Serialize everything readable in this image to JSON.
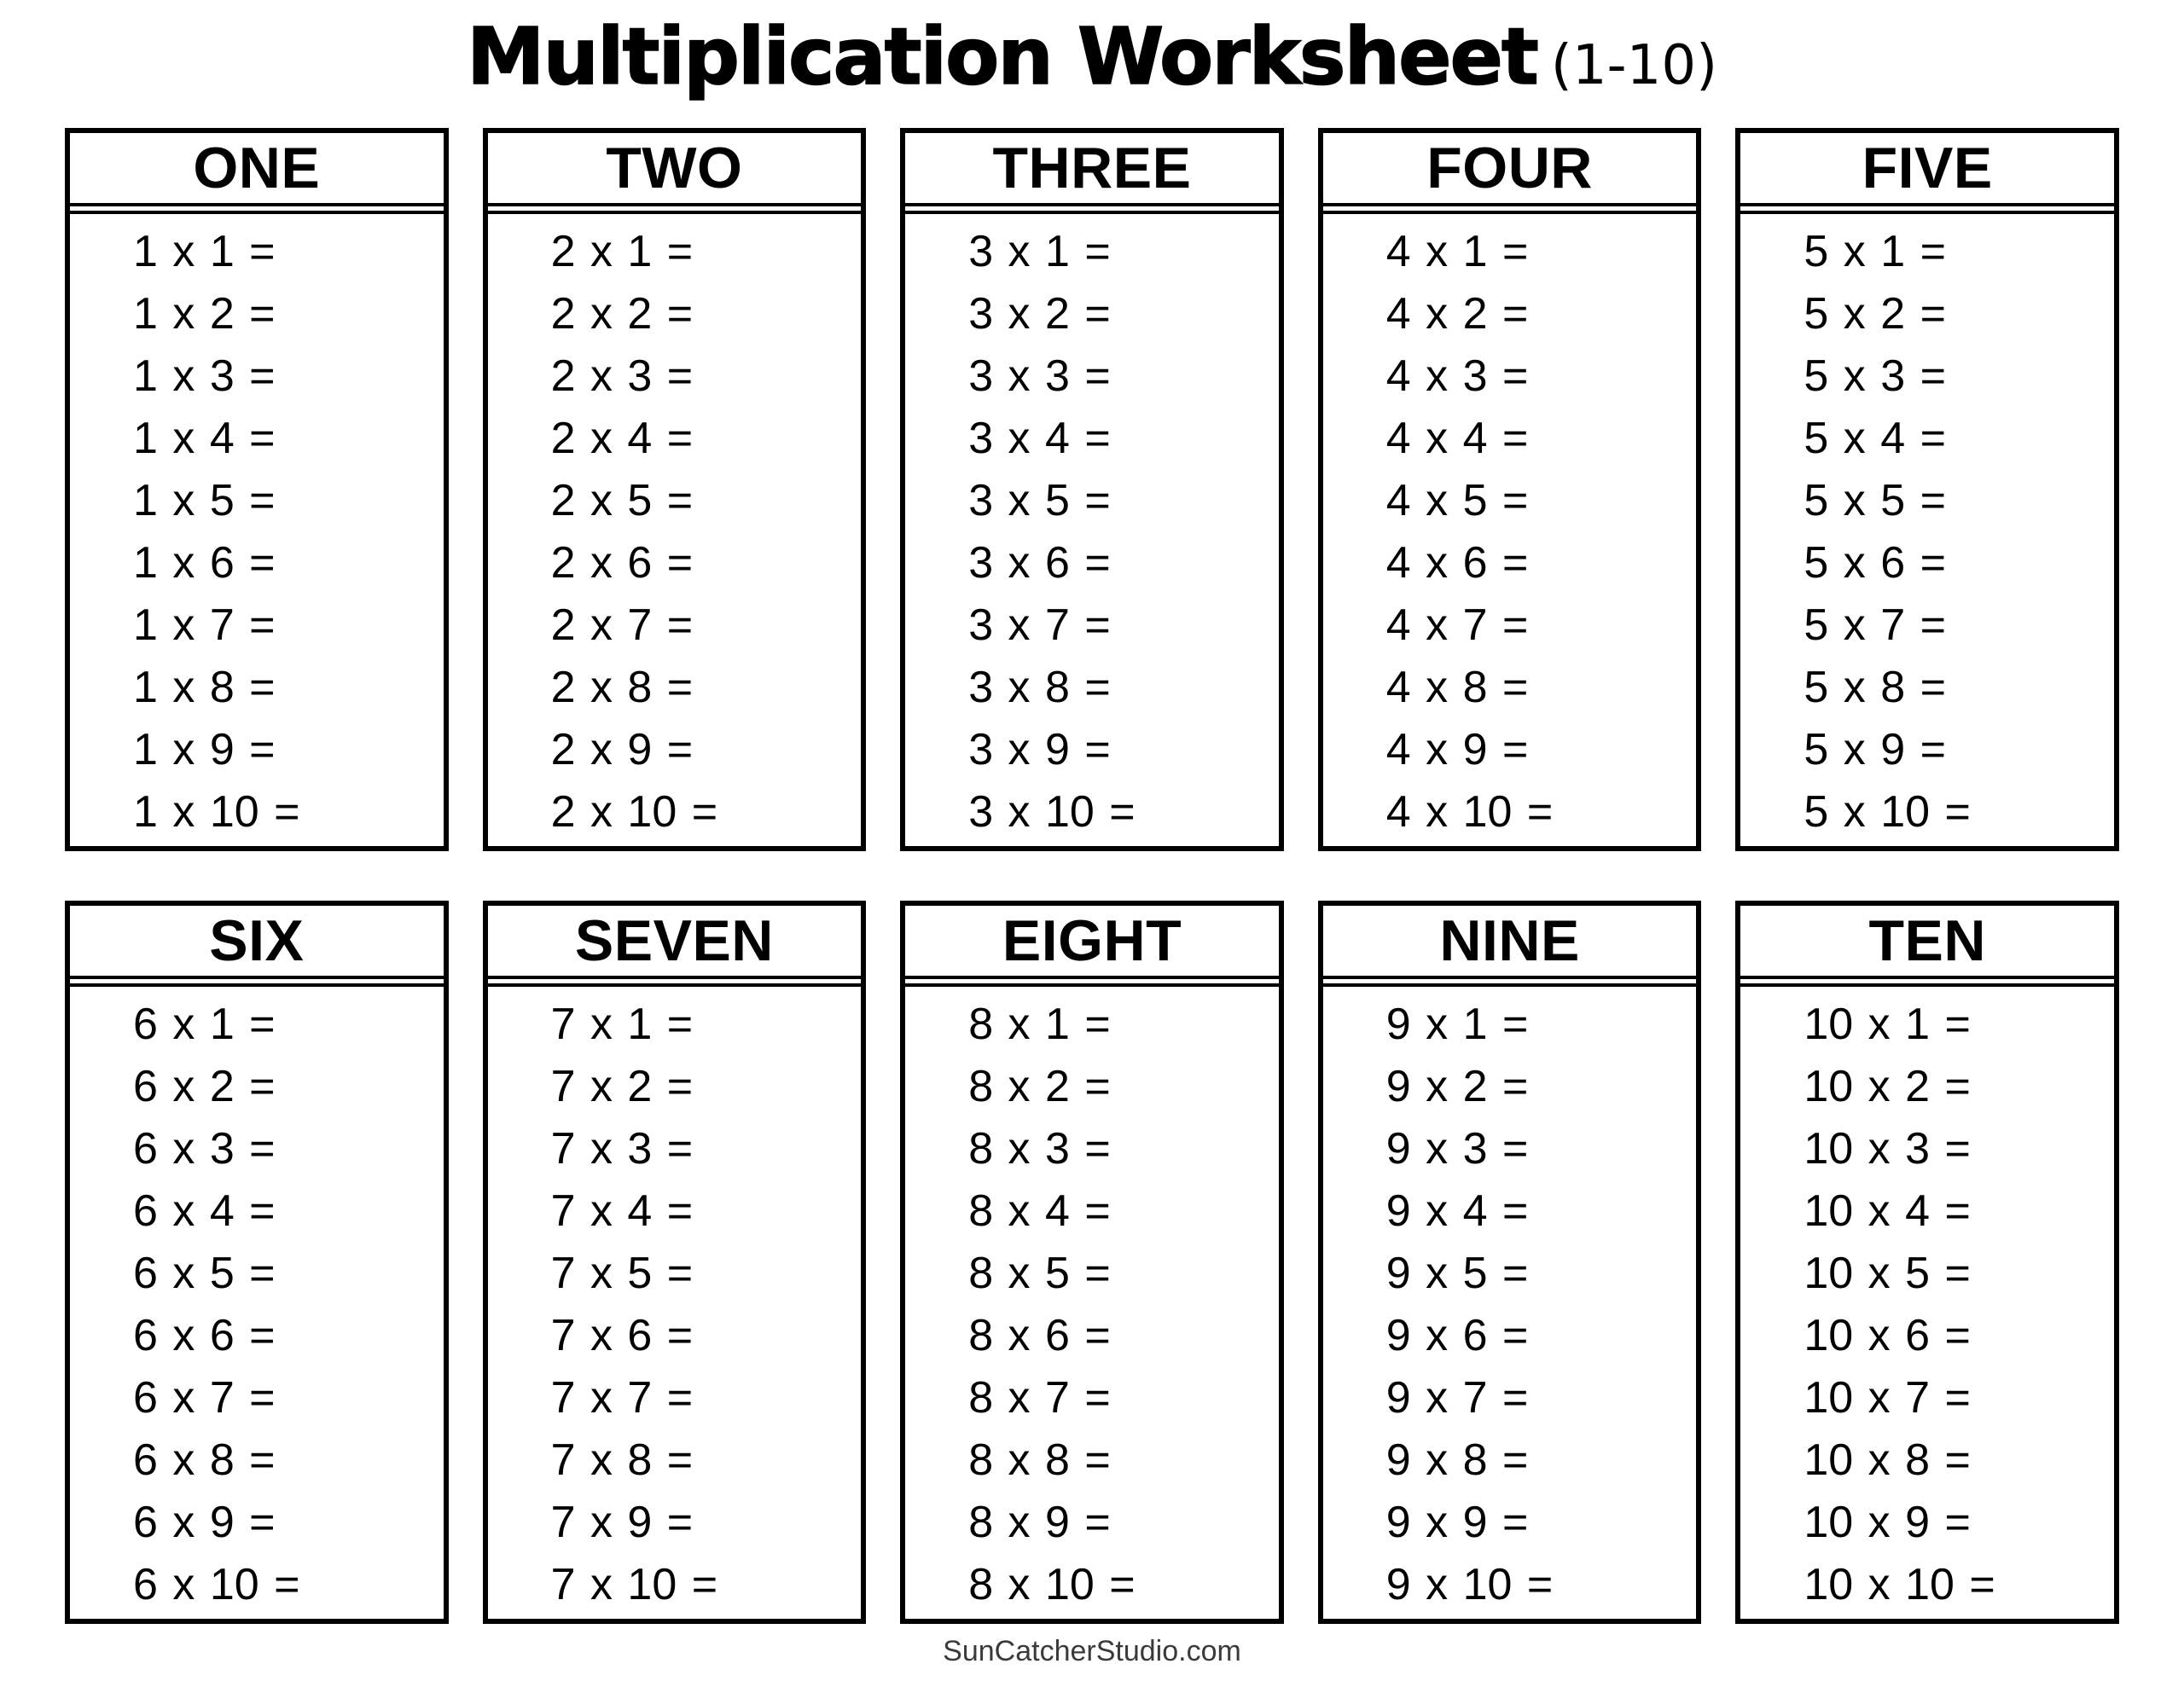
{
  "page": {
    "title": "Multiplication Worksheet",
    "title_suffix": "(1-10)",
    "footer": "SunCatcherStudio.com",
    "ink_color": "#000000",
    "footer_color": "#3a3a3a",
    "background_color": "#ffffff"
  },
  "tables": [
    {
      "name": "ONE",
      "rows": [
        "1 x 1 =",
        "1 x 2 =",
        "1 x 3 =",
        "1 x 4 =",
        "1 x 5 =",
        "1 x 6 =",
        "1 x 7 =",
        "1 x 8 =",
        "1 x 9 =",
        "1 x 10 ="
      ]
    },
    {
      "name": "TWO",
      "rows": [
        "2 x 1 =",
        "2 x 2 =",
        "2 x 3 =",
        "2 x 4 =",
        "2 x 5 =",
        "2 x 6 =",
        "2 x 7 =",
        "2 x 8 =",
        "2 x 9 =",
        "2 x 10 ="
      ]
    },
    {
      "name": "THREE",
      "rows": [
        "3 x 1 =",
        "3 x 2 =",
        "3 x 3 =",
        "3 x 4 =",
        "3 x 5 =",
        "3 x 6 =",
        "3 x 7 =",
        "3 x 8 =",
        "3 x 9 =",
        "3 x 10 ="
      ]
    },
    {
      "name": "FOUR",
      "rows": [
        "4 x 1 =",
        "4 x 2 =",
        "4 x 3 =",
        "4 x 4 =",
        "4 x 5 =",
        "4 x 6 =",
        "4 x 7 =",
        "4 x 8 =",
        "4 x 9 =",
        "4 x 10 ="
      ]
    },
    {
      "name": "FIVE",
      "rows": [
        "5 x 1 =",
        "5 x 2 =",
        "5 x 3 =",
        "5 x 4 =",
        "5 x 5 =",
        "5 x 6 =",
        "5 x 7 =",
        "5 x 8 =",
        "5 x 9 =",
        "5 x 10 ="
      ]
    },
    {
      "name": "SIX",
      "rows": [
        "6 x 1 =",
        "6 x 2 =",
        "6 x 3 =",
        "6 x 4 =",
        "6 x 5 =",
        "6 x 6 =",
        "6 x 7 =",
        "6 x 8 =",
        "6 x 9 =",
        "6 x 10 ="
      ]
    },
    {
      "name": "SEVEN",
      "rows": [
        "7 x 1 =",
        "7 x 2 =",
        "7 x 3 =",
        "7 x 4 =",
        "7 x 5 =",
        "7 x 6 =",
        "7 x 7 =",
        "7 x 8 =",
        "7 x 9 =",
        "7 x 10 ="
      ]
    },
    {
      "name": "EIGHT",
      "rows": [
        "8 x 1 =",
        "8 x 2 =",
        "8 x 3 =",
        "8 x 4 =",
        "8 x 5 =",
        "8 x 6 =",
        "8 x 7 =",
        "8 x 8 =",
        "8 x 9 =",
        "8 x 10 ="
      ]
    },
    {
      "name": "NINE",
      "rows": [
        "9 x 1 =",
        "9 x 2 =",
        "9 x 3 =",
        "9 x 4 =",
        "9 x 5 =",
        "9 x 6 =",
        "9 x 7 =",
        "9 x 8 =",
        "9 x 9 =",
        "9 x 10 ="
      ]
    },
    {
      "name": "TEN",
      "rows": [
        "10 x 1 =",
        "10 x 2 =",
        "10 x 3 =",
        "10 x 4 =",
        "10 x 5 =",
        "10 x 6 =",
        "10 x 7 =",
        "10 x 8 =",
        "10 x 9 =",
        "10 x 10 ="
      ]
    }
  ]
}
